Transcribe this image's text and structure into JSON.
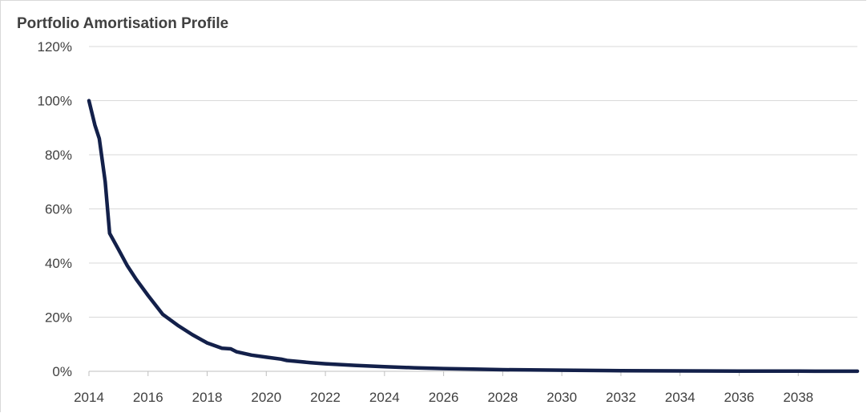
{
  "chart_data": {
    "type": "line",
    "title": "Portfolio Amortisation Profile",
    "xlabel": "",
    "ylabel": "",
    "xlim": [
      2014,
      2040
    ],
    "ylim": [
      0,
      120
    ],
    "x_ticks": [
      "2014",
      "2016",
      "2018",
      "2020",
      "2022",
      "2024",
      "2026",
      "2028",
      "2030",
      "2032",
      "2034",
      "2036",
      "2038"
    ],
    "y_ticks": [
      "0%",
      "20%",
      "40%",
      "60%",
      "80%",
      "100%",
      "120%"
    ],
    "y_tick_values": [
      0,
      20,
      40,
      60,
      80,
      100,
      120
    ],
    "grid": "horizontal",
    "legend": "none",
    "colors": {
      "line": "#13204a",
      "grid": "#d9d9d9",
      "axis": "#bfbfbf",
      "text": "#404040"
    },
    "series": [
      {
        "x": [
          2014.0,
          2014.2,
          2014.35,
          2014.55,
          2014.7,
          2015.0,
          2015.3,
          2015.6,
          2016.0,
          2016.5,
          2017.0,
          2017.5,
          2018.0,
          2018.5,
          2018.8,
          2019.0,
          2019.5,
          2020.0,
          2020.5,
          2020.7,
          2021.0,
          2021.5,
          2022.0,
          2023.0,
          2024.0,
          2025.0,
          2026.0,
          2027.0,
          2028.0,
          2030.0,
          2032.0,
          2034.0,
          2036.0,
          2038.0,
          2040.0
        ],
        "values": [
          100,
          91,
          86,
          70,
          51,
          45,
          39,
          34,
          28,
          21,
          17,
          13.5,
          10.5,
          8.5,
          8.3,
          7.2,
          6.0,
          5.2,
          4.5,
          4.0,
          3.7,
          3.2,
          2.8,
          2.2,
          1.7,
          1.3,
          1.0,
          0.8,
          0.6,
          0.4,
          0.25,
          0.15,
          0.1,
          0.05,
          0.02
        ]
      }
    ]
  }
}
